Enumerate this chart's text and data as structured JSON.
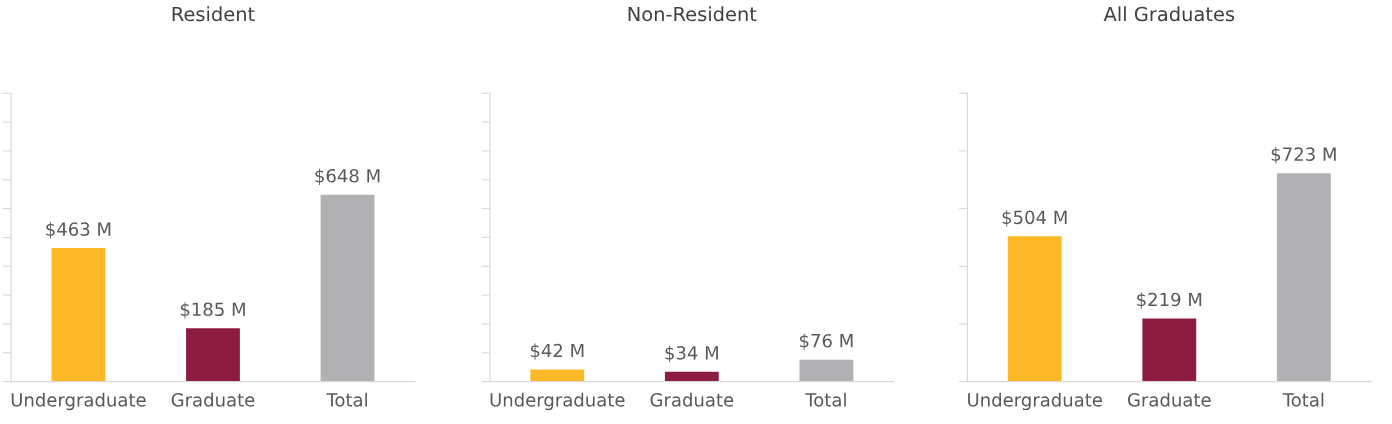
{
  "chart_data": [
    {
      "type": "bar",
      "title": "Resident",
      "categories": [
        "Undergraduate",
        "Graduate",
        "Total"
      ],
      "values": [
        463,
        185,
        648
      ],
      "colors": [
        "#fbb827",
        "#8c1c40",
        "#b1b1b4"
      ],
      "value_labels": [
        "$463 M",
        "$185 M",
        "$648 M"
      ],
      "ylim": [
        0,
        1000
      ],
      "yticks": [
        {
          "value": 0,
          "label": null
        },
        {
          "value": 100,
          "label": null
        },
        {
          "value": 200,
          "label": null
        },
        {
          "value": 300,
          "label": null
        },
        {
          "value": 400,
          "label": null
        },
        {
          "value": 500,
          "label": null
        },
        {
          "value": 600,
          "label": null
        },
        {
          "value": 700,
          "label": null
        },
        {
          "value": 800,
          "label": null
        },
        {
          "value": 900,
          "label": null
        },
        {
          "value": 1000,
          "label": null
        }
      ],
      "tick_labels": "x",
      "grid": false,
      "legend": false
    },
    {
      "type": "bar",
      "title": "Non-Resident",
      "categories": [
        "Undergraduate",
        "Graduate",
        "Total"
      ],
      "values": [
        42,
        34,
        76
      ],
      "colors": [
        "#fbb827",
        "#8c1c40",
        "#b1b1b4"
      ],
      "value_labels": [
        "$42 M",
        "$34 M",
        "$76 M"
      ],
      "ylim": [
        0,
        1000
      ],
      "yticks": [
        {
          "value": 0,
          "label": null
        },
        {
          "value": 100,
          "label": null
        },
        {
          "value": 200,
          "label": null
        },
        {
          "value": 300,
          "label": null
        },
        {
          "value": 400,
          "label": null
        },
        {
          "value": 500,
          "label": null
        },
        {
          "value": 600,
          "label": null
        },
        {
          "value": 700,
          "label": null
        },
        {
          "value": 800,
          "label": null
        },
        {
          "value": 900,
          "label": null
        },
        {
          "value": 1000,
          "label": null
        }
      ],
      "tick_labels": "x",
      "grid": false,
      "legend": false
    },
    {
      "type": "bar",
      "title": "All Graduates",
      "categories": [
        "Undergraduate",
        "Graduate",
        "Total"
      ],
      "values": [
        504,
        219,
        723
      ],
      "colors": [
        "#fbb827",
        "#8c1c40",
        "#b1b1b4"
      ],
      "value_labels": [
        "$504 M",
        "$219 M",
        "$723 M"
      ],
      "ylim": [
        0,
        1000
      ],
      "yticks": [
        {
          "value": 0,
          "label": null
        },
        {
          "value": 200,
          "label": null
        },
        {
          "value": 400,
          "label": null
        },
        {
          "value": 600,
          "label": null
        },
        {
          "value": 800,
          "label": null
        },
        {
          "value": 1000,
          "label": null
        }
      ],
      "tick_labels": "x",
      "grid": false,
      "legend": false
    }
  ]
}
